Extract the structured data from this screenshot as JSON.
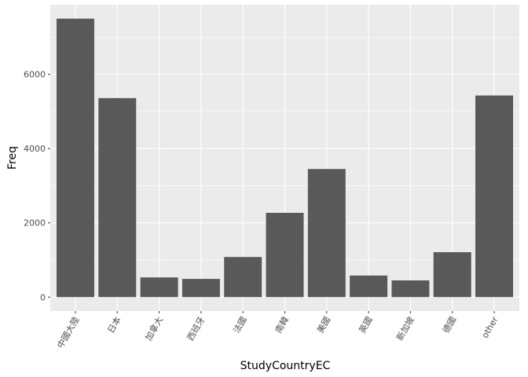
{
  "chart_data": {
    "type": "bar",
    "xlabel": "StudyCountryEC",
    "ylabel": "Freq",
    "categories": [
      "中國大陸",
      "日本",
      "加拿大",
      "西班牙",
      "法國",
      "南韓",
      "美國",
      "英國",
      "新加坡",
      "德國",
      "other"
    ],
    "values": [
      7500,
      5360,
      530,
      490,
      1080,
      2270,
      3450,
      580,
      450,
      1210,
      5430
    ],
    "yticks": [
      0,
      2000,
      4000,
      6000
    ],
    "ylim": [
      -375,
      7875
    ],
    "grid": true,
    "colors": {
      "bar": "#595959",
      "panel": "#ebebeb",
      "grid": "#ffffff"
    }
  }
}
